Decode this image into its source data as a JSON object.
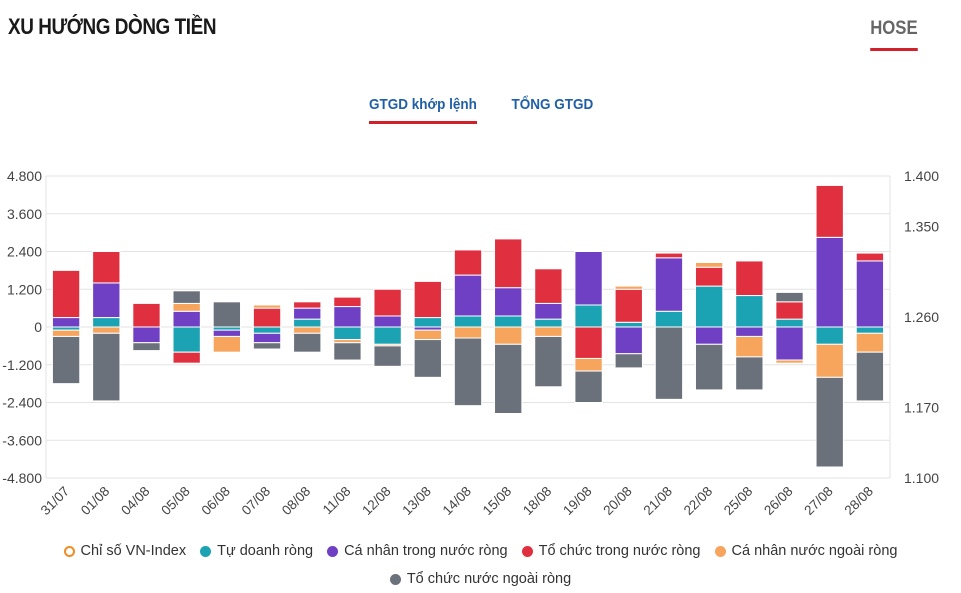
{
  "header": {
    "title": "XU HƯỚNG DÒNG TIỀN",
    "exchange": "HOSE"
  },
  "tabs": [
    {
      "label": "GTGD khớp lệnh",
      "active": true
    },
    {
      "label": "TỔNG GTGD",
      "active": false
    }
  ],
  "chart_data": {
    "type": "bar",
    "stacked": true,
    "categories": [
      "31/07",
      "01/08",
      "04/08",
      "05/08",
      "06/08",
      "07/08",
      "08/08",
      "11/08",
      "12/08",
      "13/08",
      "14/08",
      "15/08",
      "18/08",
      "19/08",
      "20/08",
      "21/08",
      "22/08",
      "25/08",
      "26/08",
      "27/08",
      "28/08"
    ],
    "y_left": {
      "ticks": [
        "4.800",
        "3.600",
        "2.400",
        "1.200",
        "0",
        "-1.200",
        "-2.400",
        "-3.600",
        "-4.800"
      ],
      "range": [
        -4800,
        4800
      ]
    },
    "y_right": {
      "ticks": [
        "1.400",
        "1.350",
        "1.260",
        "1.170",
        "1.100"
      ],
      "range": [
        1100,
        1400
      ]
    },
    "series": [
      {
        "name": "Tự doanh ròng",
        "color": "#1ba3b3",
        "values": [
          -100,
          300,
          0,
          -800,
          -100,
          -200,
          250,
          -400,
          -550,
          300,
          350,
          350,
          250,
          700,
          150,
          500,
          1300,
          1000,
          250,
          -550,
          -200
        ]
      },
      {
        "name": "Cá nhân trong nước ròng",
        "color": "#6f3fc4",
        "values": [
          300,
          1100,
          -500,
          500,
          -200,
          -300,
          350,
          650,
          350,
          -100,
          1300,
          900,
          500,
          1700,
          -850,
          1700,
          -550,
          -300,
          -1050,
          2850,
          2100
        ]
      },
      {
        "name": "Tổ chức trong nước ròng",
        "color": "#e03040",
        "values": [
          1500,
          1000,
          750,
          -350,
          0,
          600,
          200,
          300,
          850,
          1150,
          800,
          1550,
          1100,
          -1000,
          1050,
          150,
          600,
          1100,
          550,
          1650,
          250
        ]
      },
      {
        "name": "Cá nhân nước ngoài ròng",
        "color": "#f7a45c",
        "values": [
          -200,
          -200,
          0,
          250,
          -500,
          100,
          -200,
          -100,
          -50,
          -300,
          -350,
          -550,
          -300,
          -400,
          100,
          0,
          150,
          -650,
          -100,
          -1050,
          -600
        ]
      },
      {
        "name": "Tổ chức nước ngoài ròng",
        "color": "#6b717a",
        "values": [
          -1500,
          -2150,
          -250,
          400,
          800,
          -200,
          -600,
          -550,
          -650,
          -1200,
          -2150,
          -2200,
          -1600,
          -1000,
          -450,
          -2300,
          -1450,
          -1050,
          300,
          -2850,
          -1550
        ]
      }
    ],
    "line_series": {
      "name": "Chỉ số VN-Index",
      "color": "#f08c22",
      "values": []
    },
    "legend_position": "bottom"
  }
}
